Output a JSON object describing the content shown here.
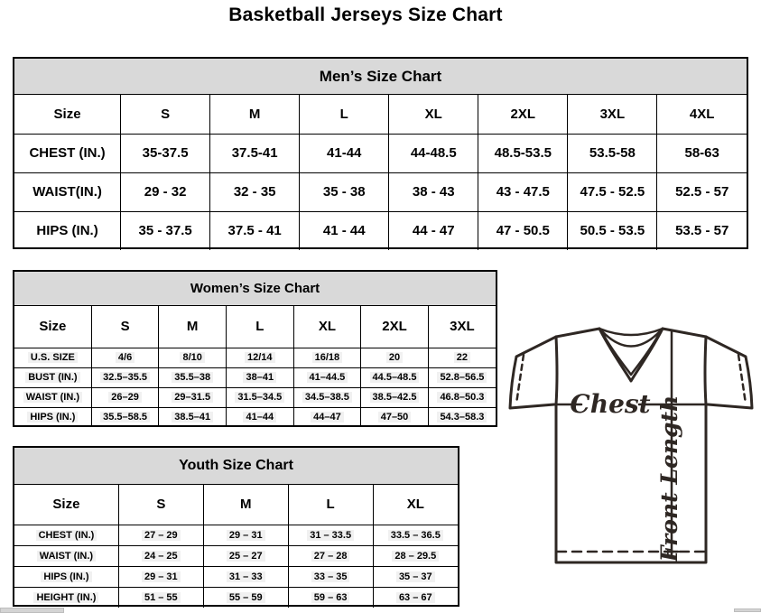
{
  "page_title": "Basketball Jerseys Size Chart",
  "tables": {
    "men": {
      "title": "Men’s Size Chart",
      "columns": [
        "Size",
        "S",
        "M",
        "L",
        "XL",
        "2XL",
        "3XL",
        "4XL"
      ],
      "rows": [
        {
          "label": "CHEST (IN.)",
          "values": [
            "35-37.5",
            "37.5-41",
            "41-44",
            "44-48.5",
            "48.5-53.5",
            "53.5-58",
            "58-63"
          ]
        },
        {
          "label": "WAIST(IN.)",
          "values": [
            "29 - 32",
            "32 - 35",
            "35 - 38",
            "38 - 43",
            "43 - 47.5",
            "47.5 - 52.5",
            "52.5 - 57"
          ]
        },
        {
          "label": "HIPS (IN.)",
          "values": [
            "35 - 37.5",
            "37.5 - 41",
            "41 - 44",
            "44 - 47",
            "47 - 50.5",
            "50.5 - 53.5",
            "53.5 - 57"
          ]
        }
      ]
    },
    "women": {
      "title": "Women’s Size Chart",
      "columns": [
        "Size",
        "S",
        "M",
        "L",
        "XL",
        "2XL",
        "3XL"
      ],
      "rows": [
        {
          "label": "U.S. SIZE",
          "values": [
            "4/6",
            "8/10",
            "12/14",
            "16/18",
            "20",
            "22"
          ]
        },
        {
          "label": "BUST (IN.)",
          "values": [
            "32.5–35.5",
            "35.5–38",
            "38–41",
            "41–44.5",
            "44.5–48.5",
            "52.8–56.5"
          ]
        },
        {
          "label": "WAIST (IN.)",
          "values": [
            "26–29",
            "29–31.5",
            "31.5–34.5",
            "34.5–38.5",
            "38.5–42.5",
            "46.8–50.3"
          ]
        },
        {
          "label": "HIPS (IN.)",
          "values": [
            "35.5–58.5",
            "38.5–41",
            "41–44",
            "44–47",
            "47–50",
            "54.3–58.3"
          ]
        }
      ]
    },
    "youth": {
      "title": "Youth Size Chart",
      "columns": [
        "Size",
        "S",
        "M",
        "L",
        "XL"
      ],
      "rows": [
        {
          "label": "CHEST (IN.)",
          "values": [
            "27 – 29",
            "29 – 31",
            "31 – 33.5",
            "33.5 – 36.5"
          ]
        },
        {
          "label": "WAIST (IN.)",
          "values": [
            "24 – 25",
            "25 – 27",
            "27 – 28",
            "28 – 29.5"
          ]
        },
        {
          "label": "HIPS (IN.)",
          "values": [
            "29 – 31",
            "31 – 33",
            "33 – 35",
            "35 – 37"
          ]
        },
        {
          "label": "HEIGHT (IN.)",
          "values": [
            "51 – 55",
            "55 – 59",
            "59 – 63",
            "63 – 67"
          ]
        }
      ]
    }
  },
  "diagram": {
    "chest_label": "Chest",
    "front_length_label": "Front Length"
  },
  "colors": {
    "table_header_bg": "#d9d9d9",
    "table_border": "#000000",
    "data_highlight_bg": "#f1f1f1",
    "diagram_ink": "#2e2723",
    "scrollbar_gray": "#d4d4d4"
  }
}
